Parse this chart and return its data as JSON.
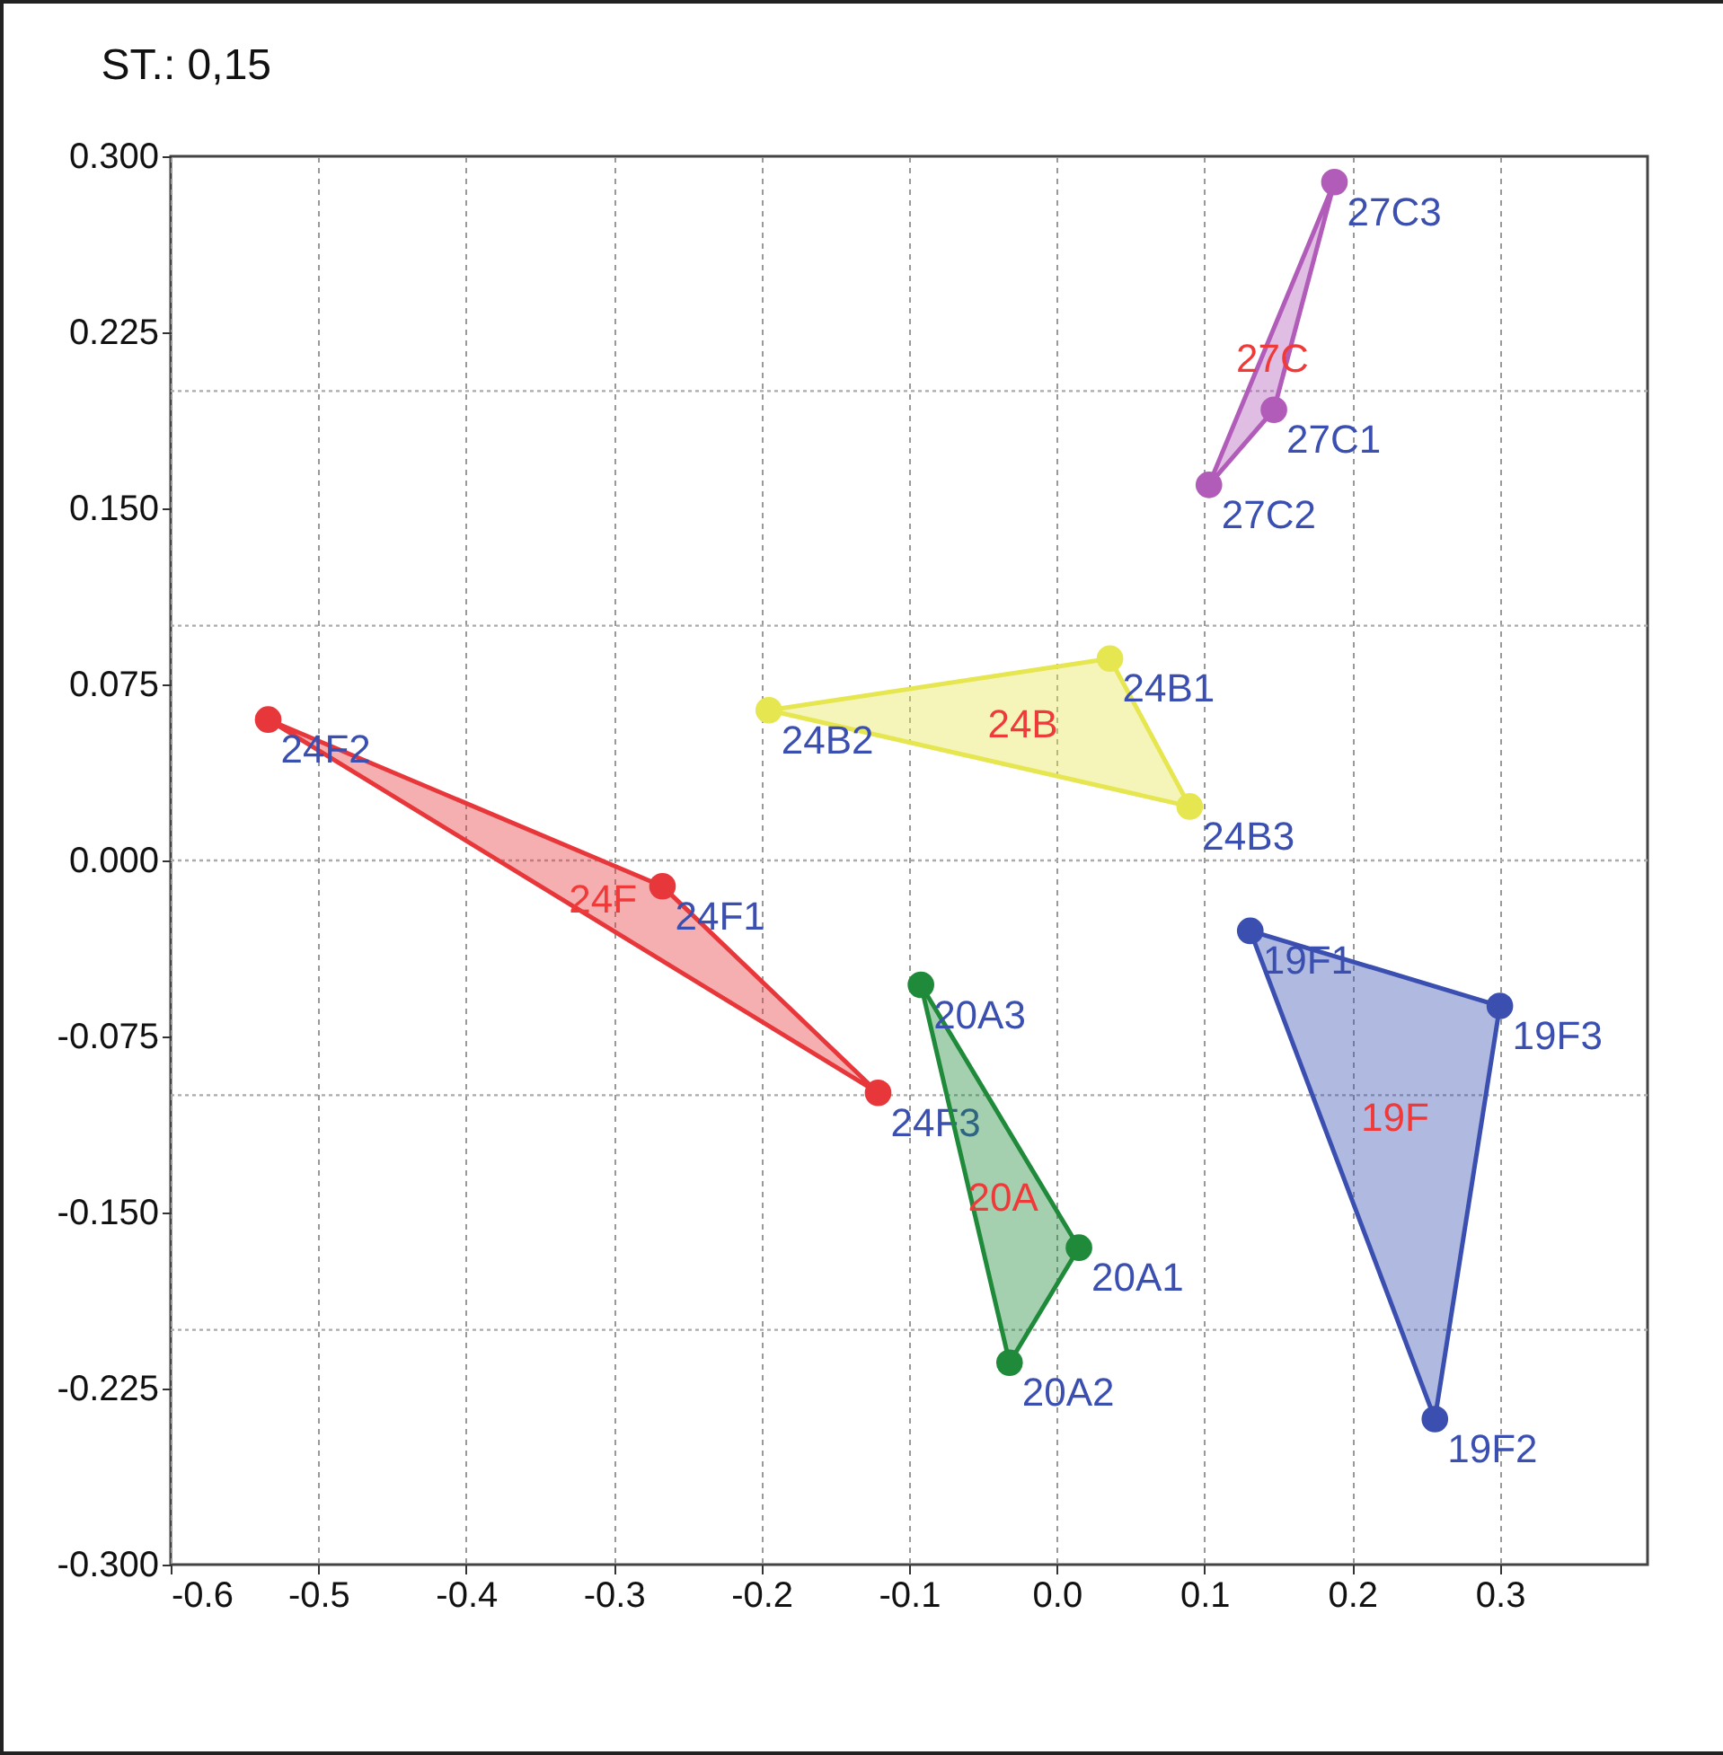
{
  "chart_data": {
    "type": "scatter",
    "title": "ST.: 0,15",
    "xlim": [
      -0.6,
      0.4
    ],
    "xticks": [
      -0.6,
      -0.5,
      -0.4,
      -0.3,
      -0.2,
      -0.1,
      {
        "value": 0,
        "label": "0.0"
      },
      0.1,
      0.2,
      0.3
    ],
    "ylim": [
      -0.3,
      0.3
    ],
    "yticks": [
      {
        "value": -0.3,
        "label": "-0.300"
      },
      {
        "value": -0.225,
        "label": "-0.225"
      },
      {
        "value": -0.15,
        "label": "-0.150"
      },
      {
        "value": -0.075,
        "label": "-0.075"
      },
      {
        "value": 0,
        "label": "0.000"
      },
      {
        "value": 0.075,
        "label": "0.075"
      },
      {
        "value": 0.15,
        "label": "0.150"
      },
      {
        "value": 0.225,
        "label": "0.225"
      },
      {
        "value": 0.3,
        "label": "0.300"
      }
    ],
    "grid": "x",
    "marker": "circle",
    "ref_lines": [
      {
        "axis": "y",
        "value": 0.2,
        "color": "#aaaaaa",
        "line_style": "dotted"
      },
      {
        "axis": "y",
        "value": 0.1,
        "color": "#aaaaaa",
        "line_style": "dotted"
      },
      {
        "axis": "y",
        "value": 0,
        "color": "#aaaaaa",
        "line_style": "dotted"
      },
      {
        "axis": "y",
        "value": -0.1,
        "color": "#aaaaaa",
        "line_style": "dotted"
      },
      {
        "axis": "y",
        "value": -0.2,
        "color": "#aaaaaa",
        "line_style": "dotted"
      }
    ],
    "series": [
      {
        "name": "27C",
        "color": "#b25cba",
        "x": [
          0.188,
          0.147,
          0.103
        ],
        "values": [
          0.289,
          0.192,
          0.16
        ],
        "value_labels": [
          "27C3",
          "27C1",
          "27C2"
        ]
      },
      {
        "name": "24B",
        "color": "#e6e650",
        "x": [
          0.036,
          -0.195,
          0.09
        ],
        "values": [
          0.086,
          0.064,
          0.023
        ],
        "value_labels": [
          "24B1",
          "24B2",
          "24B3"
        ]
      },
      {
        "name": "24F",
        "color": "#e8373a",
        "x": [
          -0.534,
          -0.267,
          -0.121
        ],
        "values": [
          0.06,
          -0.011,
          -0.099
        ],
        "value_labels": [
          "24F2",
          "24F1",
          "24F3"
        ]
      },
      {
        "name": "20A",
        "color": "#1f8a3a",
        "x": [
          -0.092,
          0.015,
          -0.032
        ],
        "values": [
          -0.053,
          -0.165,
          -0.214
        ],
        "value_labels": [
          "20A3",
          "20A1",
          "20A2"
        ]
      },
      {
        "name": "19F",
        "color": "#3a4fb0",
        "x": [
          0.131,
          0.3,
          0.256
        ],
        "values": [
          -0.03,
          -0.062,
          -0.238
        ],
        "value_labels": [
          "19F1",
          "19F3",
          "19F2"
        ]
      }
    ]
  }
}
